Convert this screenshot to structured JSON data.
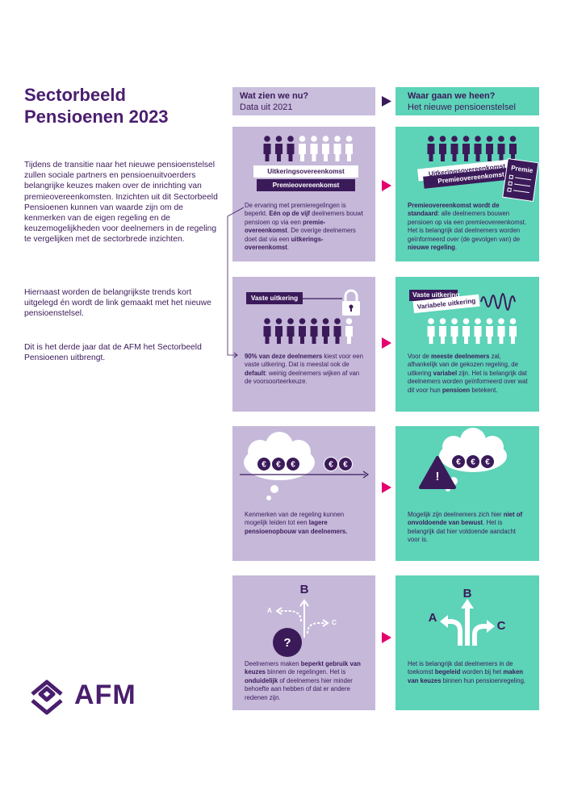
{
  "title": "Sectorbeeld Pensioenen 2023",
  "intro": [
    "Tijdens de transitie naar het nieuwe pensioenstelsel zullen sociale partners en pensioenuitvoerders belangrijke keuzes maken over de inrichting van premieovereenkomsten. Inzichten uit dit Sectorbeeld Pensioenen kunnen van waarde zijn om de kenmerken van de eigen regeling en de keuzemogelijkheden voor deelnemers in de regeling te vergelijken met de sectorbrede inzichten.",
    "Hiernaast worden de belangrijkste trends kort uitgelegd én wordt de link gemaakt met het nieuwe pensioenstelsel.",
    "Dit is het derde jaar dat de AFM het Sectorbeeld Pensioenen uitbrengt."
  ],
  "logo": "AFM",
  "columns": [
    {
      "title": "Wat zien we nu?",
      "subtitle": "Data uit 2021"
    },
    {
      "title": "Waar gaan we heen?",
      "subtitle": "Het nieuwe pensioenstelsel"
    }
  ],
  "symbols": {
    "euro": "€",
    "question": "?",
    "warning": "!"
  },
  "rows": [
    {
      "left": {
        "labels": [
          "Uitkeringsovereenkomst",
          "Premieovereenkomst"
        ],
        "text": [
          {
            "text": "De ervaring met premieregelingen is beperkt. ",
            "bold": false
          },
          {
            "text": "Eén op de vijf",
            "bold": true
          },
          {
            "text": " deelnemers bouwt pensioen op via een ",
            "bold": false
          },
          {
            "text": "premie-overeenkomst",
            "bold": true
          },
          {
            "text": ". De overige deelnemers doet dat via een ",
            "bold": false
          },
          {
            "text": "uitkerings-overeenkomst",
            "bold": true
          },
          {
            "text": ".",
            "bold": false
          }
        ]
      },
      "right": {
        "labels": [
          "Uitkeringsovereenkomst",
          "Premieovereenkomst",
          "Premie"
        ],
        "text": [
          {
            "text": "Premieovereenkomst wordt de standaard",
            "bold": true
          },
          {
            "text": ": alle deelnemers bouwen pensioen op via een premieovereenkomst. Het is belangrijk dat deelnemers worden geïnformeerd over (de gevolgen van) de ",
            "bold": false
          },
          {
            "text": "nieuwe regeling",
            "bold": true
          },
          {
            "text": ".",
            "bold": false
          }
        ]
      }
    },
    {
      "left": {
        "labels": [
          "Vaste uitkering"
        ],
        "text": [
          {
            "text": "90% van deze deelnemers",
            "bold": true
          },
          {
            "text": " kiest voor een vaste uitkering. Dat is meestal ook de ",
            "bold": false
          },
          {
            "text": "default",
            "bold": true
          },
          {
            "text": ": weinig deelnemers wijken af van de voorsoorteerkeuze.",
            "bold": false
          }
        ]
      },
      "right": {
        "labels": [
          "Vaste uitkering",
          "Variabele uitkering"
        ],
        "text": [
          {
            "text": "Voor de ",
            "bold": false
          },
          {
            "text": "meeste deelnemers",
            "bold": true
          },
          {
            "text": " zal, afhankelijk van de gekozen regeling, de uitkering ",
            "bold": false
          },
          {
            "text": "variabel",
            "bold": true
          },
          {
            "text": " zijn. Het is belangrijk dat deelnemers worden geïnformeerd over wat dit voor hun ",
            "bold": false
          },
          {
            "text": "pensioen",
            "bold": true
          },
          {
            "text": " betekent.",
            "bold": false
          }
        ]
      }
    },
    {
      "left": {
        "labels": [],
        "text": [
          {
            "text": "Kenmerken van de regeling kunnen mogelijk leiden tot een ",
            "bold": false
          },
          {
            "text": "lagere pensioenopbouw van deelnemers.",
            "bold": true
          }
        ]
      },
      "right": {
        "labels": [],
        "text": [
          {
            "text": "Mogelijk zijn deelnemers zich hier ",
            "bold": false
          },
          {
            "text": "niet of onvoldoende van bewust",
            "bold": true
          },
          {
            "text": ". Het is belangrijk dat hier voldoende aandacht voor is.",
            "bold": false
          }
        ]
      }
    },
    {
      "left": {
        "labels": [
          "A",
          "B",
          "C"
        ],
        "text": [
          {
            "text": "Deelnemers maken ",
            "bold": false
          },
          {
            "text": "beperkt gebruik van keuzes",
            "bold": true
          },
          {
            "text": " binnen de regelingen. Het is ",
            "bold": false
          },
          {
            "text": "onduidelijk",
            "bold": true
          },
          {
            "text": " of deelnemers hier minder behoefte aan hebben of dat er andere redenen zijn.",
            "bold": false
          }
        ]
      },
      "right": {
        "labels": [
          "A",
          "B",
          "C"
        ],
        "text": [
          {
            "text": "Het is belangrijk dat deelnemers in de toekomst ",
            "bold": false
          },
          {
            "text": "begeleid",
            "bold": true
          },
          {
            "text": " worden bij het ",
            "bold": false
          },
          {
            "text": "maken van keuzes",
            "bold": true
          },
          {
            "text": " binnen hun pensioenregeling.",
            "bold": false
          }
        ]
      }
    }
  ]
}
